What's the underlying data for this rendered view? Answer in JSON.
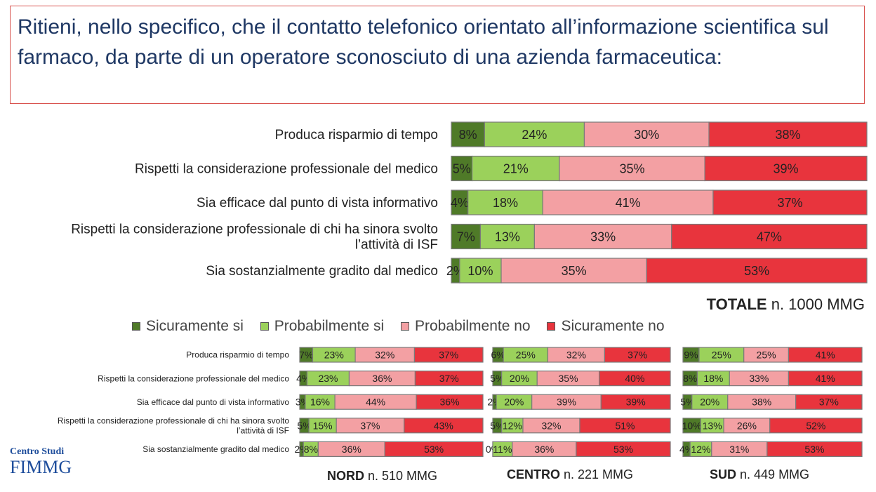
{
  "title": "Ritieni, nello specifico, che il contatto telefonico orientato all’informazione scientifica sul farmaco, da parte di un operatore sconosciuto di una azienda farmaceutica:",
  "legend": [
    {
      "label": "Sicuramente si",
      "color": "#4f7a28"
    },
    {
      "label": "Probabilmente si",
      "color": "#9bd15b"
    },
    {
      "label": "Probabilmente no",
      "color": "#f3a0a3"
    },
    {
      "label": "Sicuramente no",
      "color": "#e8343d"
    }
  ],
  "captions": {
    "totale": {
      "bold": "TOTALE",
      "rest": " n. 1000 MMG"
    },
    "nord": {
      "bold": "NORD",
      "rest": " n. 510 MMG"
    },
    "centro": {
      "bold": "CENTRO",
      "rest": " n. 221 MMG"
    },
    "sud": {
      "bold": "SUD",
      "rest": " n. 449 MMG"
    }
  },
  "logo": {
    "top": "Centro Studi",
    "main": "FIMMG"
  },
  "chart_data": [
    {
      "type": "bar",
      "stacked": true,
      "orientation": "horizontal",
      "panel": "TOTALE",
      "categories": [
        "Produca risparmio di tempo",
        "Rispetti la considerazione professionale del medico",
        "Sia efficace dal punto di vista informativo",
        "Rispetti la considerazione professionale di chi ha sinora svolto l’attività di ISF",
        "Sia sostanzialmente gradito dal medico"
      ],
      "category_lines": [
        [
          "Produca risparmio di tempo"
        ],
        [
          "Rispetti la considerazione professionale del medico"
        ],
        [
          "Sia efficace dal punto di vista informativo"
        ],
        [
          "Rispetti la considerazione professionale di chi ha sinora svolto",
          "l’attività di ISF"
        ],
        [
          "Sia sostanzialmente gradito dal medico"
        ]
      ],
      "series": [
        {
          "name": "Sicuramente si",
          "values": [
            8,
            5,
            4,
            7,
            2
          ]
        },
        {
          "name": "Probabilmente si",
          "values": [
            24,
            21,
            18,
            13,
            10
          ]
        },
        {
          "name": "Probabilmente no",
          "values": [
            30,
            35,
            41,
            33,
            35
          ]
        },
        {
          "name": "Sicuramente no",
          "values": [
            38,
            39,
            37,
            47,
            53
          ]
        }
      ]
    },
    {
      "type": "bar",
      "stacked": true,
      "orientation": "horizontal",
      "panel": "NORD",
      "categories": [
        "Produca risparmio di tempo",
        "Rispetti la considerazione professionale del medico",
        "Sia efficace dal punto di vista informativo",
        "Rispetti la considerazione professionale di chi ha sinora svolto l’attività di ISF",
        "Sia sostanzialmente gradito dal medico"
      ],
      "category_lines": [
        [
          "Produca risparmio di tempo"
        ],
        [
          "Rispetti la considerazione professionale del medico"
        ],
        [
          "Sia efficace dal punto di vista informativo"
        ],
        [
          "Rispetti la considerazione professionale di chi ha sinora svolto",
          "l’attività di ISF"
        ],
        [
          "Sia sostanzialmente gradito dal medico"
        ]
      ],
      "series": [
        {
          "name": "Sicuramente si",
          "values": [
            7,
            4,
            3,
            5,
            2
          ]
        },
        {
          "name": "Probabilmente si",
          "values": [
            23,
            23,
            16,
            15,
            8
          ]
        },
        {
          "name": "Probabilmente no",
          "values": [
            32,
            36,
            44,
            37,
            36
          ]
        },
        {
          "name": "Sicuramente no",
          "values": [
            37,
            37,
            36,
            43,
            53
          ]
        }
      ]
    },
    {
      "type": "bar",
      "stacked": true,
      "orientation": "horizontal",
      "panel": "CENTRO",
      "series": [
        {
          "name": "Sicuramente si",
          "values": [
            6,
            5,
            2,
            5,
            0
          ]
        },
        {
          "name": "Probabilmente si",
          "values": [
            25,
            20,
            20,
            12,
            11
          ]
        },
        {
          "name": "Probabilmente no",
          "values": [
            32,
            35,
            39,
            32,
            36
          ]
        },
        {
          "name": "Sicuramente no",
          "values": [
            37,
            40,
            39,
            51,
            53
          ]
        }
      ]
    },
    {
      "type": "bar",
      "stacked": true,
      "orientation": "horizontal",
      "panel": "SUD",
      "series": [
        {
          "name": "Sicuramente si",
          "values": [
            9,
            8,
            5,
            10,
            4
          ]
        },
        {
          "name": "Probabilmente si",
          "values": [
            25,
            18,
            20,
            13,
            12
          ]
        },
        {
          "name": "Probabilmente no",
          "values": [
            25,
            33,
            38,
            26,
            31
          ]
        },
        {
          "name": "Sicuramente no",
          "values": [
            41,
            41,
            37,
            52,
            53
          ]
        }
      ]
    }
  ]
}
